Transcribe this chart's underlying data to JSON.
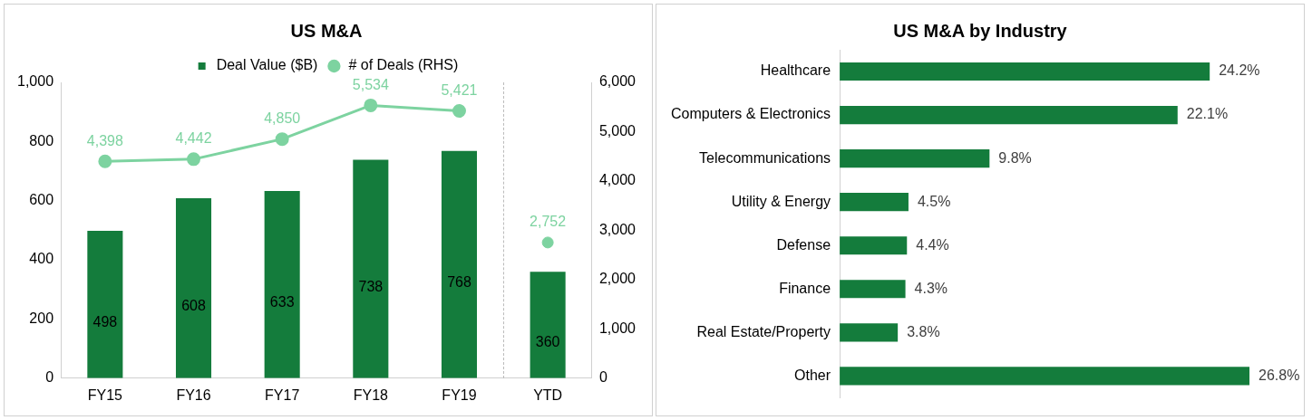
{
  "chart_data": [
    {
      "type": "bar",
      "title": "US M&A",
      "categories": [
        "FY15",
        "FY16",
        "FY17",
        "FY18",
        "FY19",
        "YTD"
      ],
      "series": [
        {
          "name": "Deal Value ($B)",
          "type": "bar",
          "color": "#147c3c",
          "values": [
            498,
            608,
            633,
            738,
            768,
            360
          ],
          "value_labels": [
            "498",
            "608",
            "633",
            "738",
            "768",
            "360"
          ]
        },
        {
          "name": "# of Deals (RHS)",
          "type": "line",
          "axis": "y2",
          "color": "#7dd3a0",
          "values": [
            4398,
            4442,
            4850,
            5534,
            5421,
            null
          ],
          "value_labels": [
            "4,398",
            "4,442",
            "4,850",
            "5,534",
            "5,421",
            null
          ]
        },
        {
          "type": "scatter",
          "axis": "y2",
          "color": "#7dd3a0",
          "values": [
            null,
            null,
            null,
            null,
            null,
            2752
          ],
          "value_labels": [
            null,
            null,
            null,
            null,
            null,
            "2,752"
          ]
        }
      ],
      "ylim": [
        0,
        1000
      ],
      "yticks": [
        0,
        200,
        400,
        600,
        800,
        {
          "value": 1000,
          "label": "1,000"
        }
      ],
      "y2lim": [
        0,
        6000
      ],
      "y2ticks": [
        0,
        {
          "value": 1000,
          "label": "1,000"
        },
        {
          "value": 2000,
          "label": "2,000"
        },
        {
          "value": 3000,
          "label": "3,000"
        },
        {
          "value": 4000,
          "label": "4,000"
        },
        {
          "value": 5000,
          "label": "5,000"
        },
        {
          "value": 6000,
          "label": "6,000"
        }
      ],
      "marker": "circle",
      "legend": "top",
      "grid": false
    },
    {
      "type": "bar",
      "title": "US M&A by Industry",
      "orientation": "horizontal",
      "categories": [
        "Healthcare",
        "Computers & Electronics",
        "Telecommunications",
        "Utility & Energy",
        "Defense",
        "Finance",
        "Real Estate/Property",
        "Other"
      ],
      "values": [
        24.2,
        22.1,
        9.8,
        4.5,
        4.4,
        4.3,
        3.8,
        26.8
      ],
      "color": "#147c3c",
      "value_labels": [
        "24.2%",
        "22.1%",
        "9.8%",
        "4.5%",
        "4.4%",
        "4.3%",
        "3.8%",
        "26.8%"
      ],
      "tick_labels": "y",
      "grid": false,
      "legend": false
    }
  ]
}
